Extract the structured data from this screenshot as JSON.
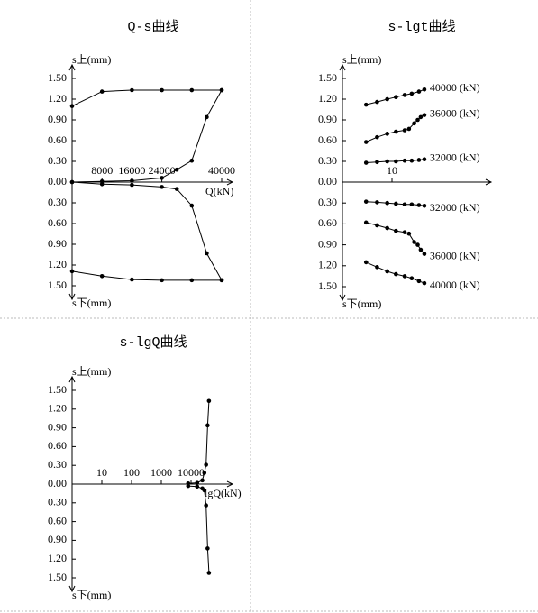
{
  "chart_data": [
    {
      "type": "line",
      "title": "Q-s曲线",
      "y_label_up": "s上(mm)",
      "y_label_down": "s下(mm)",
      "x_label": "Q(kN)",
      "xscale": "linear",
      "xlim": [
        0,
        40000
      ],
      "xticks": [
        8000,
        16000,
        24000,
        40000
      ],
      "ylim": [
        -1.5,
        1.5
      ],
      "yticks": [
        {
          "value": 1.5,
          "label": "1.50"
        },
        {
          "value": 1.2,
          "label": "1.20"
        },
        {
          "value": 0.9,
          "label": "0.90"
        },
        {
          "value": 0.6,
          "label": "0.60"
        },
        {
          "value": 0.3,
          "label": "0.30"
        },
        {
          "value": 0,
          "label": "0.00"
        },
        {
          "value": -0.3,
          "label": "0.30"
        },
        {
          "value": -0.6,
          "label": "0.60"
        },
        {
          "value": -0.9,
          "label": "0.90"
        },
        {
          "value": -1.2,
          "label": "1.20"
        },
        {
          "value": -1.5,
          "label": "1.50"
        }
      ],
      "color": "#000000",
      "series": [
        {
          "x": [
            0,
            8000,
            16000,
            24000,
            28000,
            32000,
            36000,
            40000
          ],
          "values": [
            0,
            0.01,
            0.02,
            0.06,
            0.18,
            0.31,
            0.94,
            1.33
          ]
        },
        {
          "x": [
            40000,
            32000,
            24000,
            16000,
            8000,
            0
          ],
          "values": [
            1.33,
            1.33,
            1.33,
            1.33,
            1.31,
            1.1
          ]
        },
        {
          "x": [
            0,
            8000,
            16000,
            24000,
            28000,
            32000,
            36000,
            40000
          ],
          "values": [
            0,
            -0.03,
            -0.04,
            -0.07,
            -0.1,
            -0.34,
            -1.03,
            -1.42
          ]
        },
        {
          "x": [
            40000,
            32000,
            24000,
            16000,
            8000,
            0
          ],
          "values": [
            -1.42,
            -1.42,
            -1.42,
            -1.41,
            -1.36,
            -1.29
          ]
        }
      ]
    },
    {
      "type": "line",
      "title": "s-lgt曲线",
      "y_label_up": "s上(mm)",
      "y_label_down": "s下(mm)",
      "xscale": "log",
      "xlim": [
        1,
        100
      ],
      "xticks": [
        10
      ],
      "ylim": [
        -1.5,
        1.5
      ],
      "yticks": [
        {
          "value": 1.5,
          "label": "1.50"
        },
        {
          "value": 1.2,
          "label": "1.20"
        },
        {
          "value": 0.9,
          "label": "0.90"
        },
        {
          "value": 0.6,
          "label": "0.60"
        },
        {
          "value": 0.3,
          "label": "0.30"
        },
        {
          "value": 0,
          "label": "0.00"
        },
        {
          "value": -0.3,
          "label": "0.30"
        },
        {
          "value": -0.6,
          "label": "0.60"
        },
        {
          "value": -0.9,
          "label": "0.90"
        },
        {
          "value": -1.2,
          "label": "1.20"
        },
        {
          "value": -1.5,
          "label": "1.50"
        }
      ],
      "color": "#000000",
      "series": [
        {
          "name": "40000 (kN)",
          "x": [
            3,
            5,
            8,
            12,
            18,
            25,
            35,
            45
          ],
          "values": [
            1.12,
            1.16,
            1.2,
            1.23,
            1.26,
            1.28,
            1.31,
            1.34
          ]
        },
        {
          "name": "36000 (kN)",
          "x": [
            3,
            5,
            8,
            12,
            18,
            22,
            28,
            33,
            38,
            45
          ],
          "values": [
            0.58,
            0.65,
            0.7,
            0.73,
            0.75,
            0.77,
            0.85,
            0.9,
            0.94,
            0.97
          ]
        },
        {
          "name": "32000 (kN)",
          "x": [
            3,
            5,
            8,
            12,
            18,
            25,
            35,
            45
          ],
          "values": [
            0.28,
            0.29,
            0.3,
            0.3,
            0.31,
            0.31,
            0.32,
            0.33
          ]
        },
        {
          "name": "32000 (kN)",
          "x": [
            3,
            5,
            8,
            12,
            18,
            25,
            35,
            45
          ],
          "values": [
            -0.28,
            -0.29,
            -0.3,
            -0.31,
            -0.32,
            -0.32,
            -0.33,
            -0.34
          ]
        },
        {
          "name": "36000 (kN)",
          "x": [
            3,
            5,
            8,
            12,
            18,
            22,
            28,
            33,
            38,
            45
          ],
          "values": [
            -0.58,
            -0.62,
            -0.66,
            -0.7,
            -0.72,
            -0.74,
            -0.86,
            -0.9,
            -0.97,
            -1.03
          ]
        },
        {
          "name": "40000 (kN)",
          "x": [
            3,
            5,
            8,
            12,
            18,
            25,
            35,
            45
          ],
          "values": [
            -1.15,
            -1.22,
            -1.28,
            -1.32,
            -1.35,
            -1.38,
            -1.42,
            -1.45
          ]
        }
      ]
    },
    {
      "type": "line",
      "title": "s-lgQ曲线",
      "y_label_up": "s上(mm)",
      "y_label_down": "s下(mm)",
      "x_label": "lgQ(kN)",
      "xscale": "log",
      "xlim": [
        1,
        100000
      ],
      "xticks": [
        10,
        100,
        1000,
        10000
      ],
      "ylim": [
        -1.5,
        1.5
      ],
      "yticks": [
        {
          "value": 1.5,
          "label": "1.50"
        },
        {
          "value": 1.2,
          "label": "1.20"
        },
        {
          "value": 0.9,
          "label": "0.90"
        },
        {
          "value": 0.6,
          "label": "0.60"
        },
        {
          "value": 0.3,
          "label": "0.30"
        },
        {
          "value": 0,
          "label": "0.00"
        },
        {
          "value": -0.3,
          "label": "0.30"
        },
        {
          "value": -0.6,
          "label": "0.60"
        },
        {
          "value": -0.9,
          "label": "0.90"
        },
        {
          "value": -1.2,
          "label": "1.20"
        },
        {
          "value": -1.5,
          "label": "1.50"
        }
      ],
      "color": "#000000",
      "series": [
        {
          "x": [
            8000,
            16000,
            24000,
            28000,
            32000,
            36000,
            40000
          ],
          "values": [
            0.01,
            0.02,
            0.06,
            0.18,
            0.31,
            0.94,
            1.33
          ]
        },
        {
          "x": [
            8000,
            16000,
            24000,
            28000,
            32000,
            36000,
            40000
          ],
          "values": [
            -0.03,
            -0.04,
            -0.07,
            -0.1,
            -0.34,
            -1.03,
            -1.42
          ]
        }
      ]
    }
  ]
}
